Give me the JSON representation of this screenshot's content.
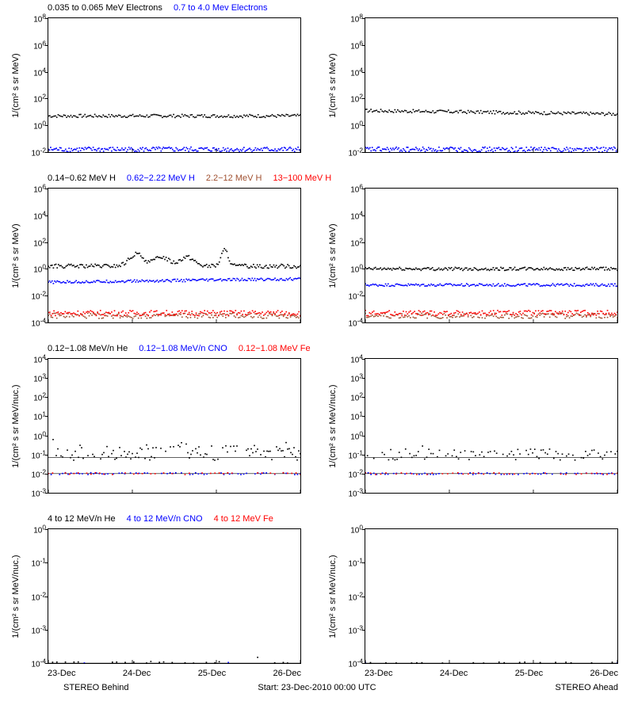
{
  "global": {
    "start_label": "Start: 23-Dec-2010 00:00 UTC",
    "behind_label": "STEREO Behind",
    "ahead_label": "STEREO Ahead",
    "x_ticks": [
      "23-Dec",
      "24-Dec",
      "25-Dec",
      "26-Dec"
    ],
    "colors": {
      "black": "#000000",
      "blue": "#0000ff",
      "red": "#ff0000",
      "darkred": "#a05030",
      "bg": "#ffffff"
    }
  },
  "rows": [
    {
      "ylabel": "1/(cm² s sr MeV)",
      "title_parts": [
        {
          "text": "0.035 to 0.065 MeV Electrons",
          "color": "#000000"
        },
        {
          "text": "0.7 to 4.0 Mev Electrons",
          "color": "#0000ff"
        }
      ],
      "ylim_exp": [
        -2,
        8
      ],
      "ytick_exp": [
        -2,
        0,
        2,
        4,
        6,
        8
      ],
      "left": {
        "series": [
          {
            "color": "#000000",
            "mean_exp": 0.7,
            "noise": 0.12,
            "density": 180
          },
          {
            "color": "#0000ff",
            "mean_exp": -1.8,
            "noise": 0.18,
            "density": 220
          }
        ]
      },
      "right": {
        "series": [
          {
            "color": "#000000",
            "mean_exp": 1.1,
            "noise": 0.12,
            "density": 180,
            "drift": -0.25
          },
          {
            "color": "#0000ff",
            "mean_exp": -1.8,
            "noise": 0.18,
            "density": 220
          }
        ]
      }
    },
    {
      "ylabel": "1/(cm² s sr MeV)",
      "title_parts": [
        {
          "text": "0.14−0.62 MeV H",
          "color": "#000000"
        },
        {
          "text": "0.62−2.22 MeV H",
          "color": "#0000ff"
        },
        {
          "text": "2.2−12 MeV H",
          "color": "#a05030"
        },
        {
          "text": "13−100 MeV H",
          "color": "#ff0000"
        }
      ],
      "ylim_exp": [
        -4,
        6
      ],
      "ytick_exp": [
        -4,
        -2,
        0,
        2,
        4,
        6
      ],
      "left": {
        "series": [
          {
            "color": "#000000",
            "mean_exp": 0.2,
            "noise": 0.15,
            "density": 200,
            "bumps": [
              {
                "pos": 0.35,
                "h": 0.9,
                "w": 0.04
              },
              {
                "pos": 0.45,
                "h": 0.7,
                "w": 0.04
              },
              {
                "pos": 0.55,
                "h": 0.7,
                "w": 0.04
              },
              {
                "pos": 0.7,
                "h": 1.2,
                "w": 0.02
              }
            ]
          },
          {
            "color": "#0000ff",
            "mean_exp": -1.0,
            "noise": 0.1,
            "density": 200,
            "drift": 0.25
          },
          {
            "color": "#a05030",
            "mean_exp": -3.5,
            "noise": 0.2,
            "density": 180
          },
          {
            "color": "#ff0000",
            "mean_exp": -3.3,
            "noise": 0.2,
            "density": 180
          }
        ]
      },
      "right": {
        "series": [
          {
            "color": "#000000",
            "mean_exp": 0.0,
            "noise": 0.12,
            "density": 200
          },
          {
            "color": "#0000ff",
            "mean_exp": -1.2,
            "noise": 0.1,
            "density": 200
          },
          {
            "color": "#a05030",
            "mean_exp": -3.5,
            "noise": 0.2,
            "density": 180
          },
          {
            "color": "#ff0000",
            "mean_exp": -3.3,
            "noise": 0.2,
            "density": 180
          }
        ]
      }
    },
    {
      "ylabel": "1/(cm² s sr MeV/nuc.)",
      "title_parts": [
        {
          "text": "0.12−1.08 MeV/n He",
          "color": "#000000"
        },
        {
          "text": "0.12−1.08 MeV/n CNO",
          "color": "#0000ff"
        },
        {
          "text": "0.12−1.08 MeV Fe",
          "color": "#ff0000"
        }
      ],
      "ylim_exp": [
        -3,
        4
      ],
      "ytick_exp": [
        -3,
        -2,
        -1,
        0,
        1,
        2,
        3,
        4
      ],
      "left": {
        "series": [
          {
            "color": "#000000",
            "mean_exp": -0.9,
            "noise": 0.4,
            "density": 160,
            "sparse": true,
            "spikes": 0.5
          },
          {
            "color": "#0000ff",
            "mean_exp": -2.0,
            "noise": 0.05,
            "density": 90,
            "sparse": true
          },
          {
            "color": "#ff0000",
            "mean_exp": -2.0,
            "noise": 0.05,
            "density": 60,
            "sparse": true
          }
        ],
        "hlines": [
          {
            "y_exp": -1.15,
            "color": "#000000"
          },
          {
            "y_exp": -2.0,
            "color": "#000000"
          }
        ]
      },
      "right": {
        "series": [
          {
            "color": "#000000",
            "mean_exp": -1.0,
            "noise": 0.3,
            "density": 120,
            "sparse": true,
            "spikes": 0.3
          },
          {
            "color": "#0000ff",
            "mean_exp": -2.0,
            "noise": 0.05,
            "density": 90,
            "sparse": true
          },
          {
            "color": "#ff0000",
            "mean_exp": -2.0,
            "noise": 0.05,
            "density": 50,
            "sparse": true
          }
        ],
        "hlines": [
          {
            "y_exp": -1.15,
            "color": "#000000"
          },
          {
            "y_exp": -2.0,
            "color": "#000000"
          }
        ]
      }
    },
    {
      "ylabel": "1/(cm² s sr MeV/nuc.)",
      "title_parts": [
        {
          "text": "4 to 12 MeV/n He",
          "color": "#000000"
        },
        {
          "text": "4 to 12 MeV/n CNO",
          "color": "#0000ff"
        },
        {
          "text": "4 to 12 MeV Fe",
          "color": "#ff0000"
        }
      ],
      "ylim_exp": [
        -4,
        0
      ],
      "ytick_exp": [
        -4,
        -3,
        -2,
        -1,
        0
      ],
      "left": {
        "series": [
          {
            "color": "#000000",
            "mean_exp": -4.0,
            "noise": 0.05,
            "density": 60,
            "sparse": true,
            "spikes": 0.3
          },
          {
            "color": "#0000ff",
            "mean_exp": -4.0,
            "noise": 0.02,
            "density": 8,
            "sparse": true
          }
        ],
        "hlines": [
          {
            "y_exp": -4.0,
            "color": "#000000"
          }
        ]
      },
      "right": {
        "series": [
          {
            "color": "#000000",
            "mean_exp": -4.0,
            "noise": 0.03,
            "density": 50,
            "sparse": true
          },
          {
            "color": "#0000ff",
            "mean_exp": -4.0,
            "noise": 0.02,
            "density": 6,
            "sparse": true
          }
        ],
        "hlines": [
          {
            "y_exp": -4.0,
            "color": "#000000"
          }
        ]
      }
    }
  ]
}
